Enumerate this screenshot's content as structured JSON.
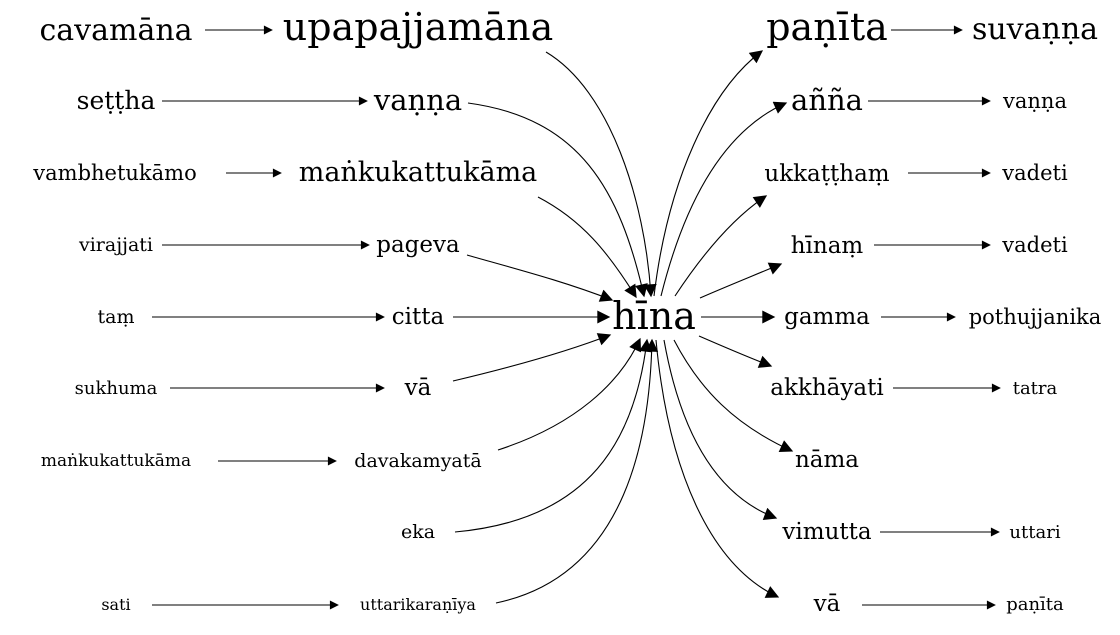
{
  "graph": {
    "center": "hīna",
    "left_sources": [
      {
        "source": "cavamāna",
        "target": "upapajjamāna"
      },
      {
        "source": "seṭṭha",
        "target": "vaṇṇa"
      },
      {
        "source": "vambhetukāmo",
        "target": "maṅkukattukāma"
      },
      {
        "source": "virajjati",
        "target": "pageva"
      },
      {
        "source": "taṃ",
        "target": "citta"
      },
      {
        "source": "sukhuma",
        "target": "vā"
      },
      {
        "source": "maṅkukattukāma",
        "target": "davakamyatā"
      },
      {
        "source": "",
        "target": "eka"
      },
      {
        "source": "sati",
        "target": "uttarikaraṇīya"
      }
    ],
    "right_targets": [
      {
        "node": "paṇīta",
        "next": "suvaṇṇa"
      },
      {
        "node": "añña",
        "next": "vaṇṇa"
      },
      {
        "node": "ukkaṭṭhaṃ",
        "next": "vadeti"
      },
      {
        "node": "hīnaṃ",
        "next": "vadeti"
      },
      {
        "node": "gamma",
        "next": "pothujjanika"
      },
      {
        "node": "akkhāyati",
        "next": "tatra"
      },
      {
        "node": "nāma",
        "next": ""
      },
      {
        "node": "vimutta",
        "next": "uttari"
      },
      {
        "node": "vā",
        "next": "paṇīta"
      }
    ]
  }
}
